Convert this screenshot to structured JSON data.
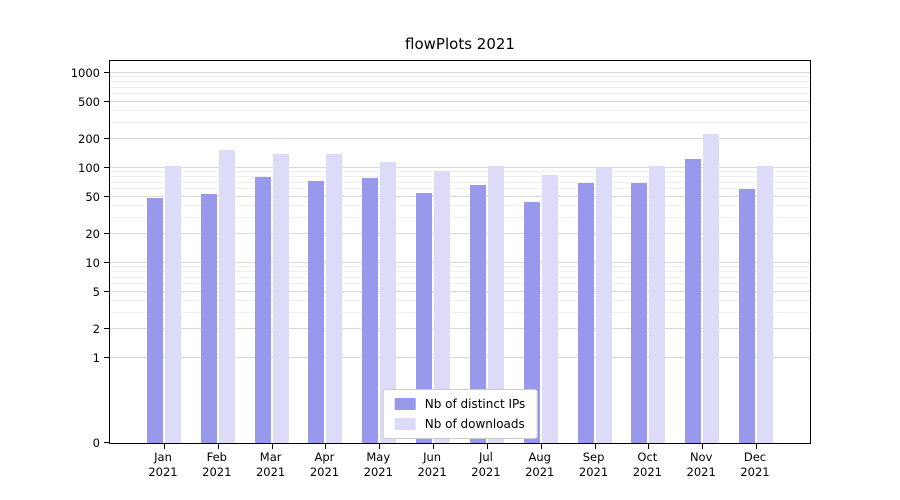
{
  "chart_data": {
    "type": "bar",
    "title": "flowPlots 2021",
    "xlabel": "",
    "ylabel": "",
    "scale": "symlog",
    "grid": true,
    "ylim": [
      0,
      1340
    ],
    "yticks": [
      0,
      1,
      2,
      5,
      10,
      20,
      50,
      100,
      200,
      500,
      1000
    ],
    "categories": [
      "Jan",
      "Feb",
      "Mar",
      "Apr",
      "May",
      "Jun",
      "Jul",
      "Aug",
      "Sep",
      "Oct",
      "Nov",
      "Dec"
    ],
    "year": "2021",
    "series": [
      {
        "name": "Nb of distinct IPs",
        "color": "#9898ec",
        "values": [
          48,
          53,
          80,
          73,
          78,
          54,
          66,
          44,
          69,
          69,
          125,
          60
        ]
      },
      {
        "name": "Nb of downloads",
        "color": "#dcdcf9",
        "values": [
          105,
          155,
          140,
          140,
          115,
          92,
          105,
          84,
          100,
          105,
          230,
          105
        ]
      }
    ],
    "legend": {
      "position": "lower center",
      "entries": [
        "Nb of distinct IPs",
        "Nb of downloads"
      ]
    }
  }
}
